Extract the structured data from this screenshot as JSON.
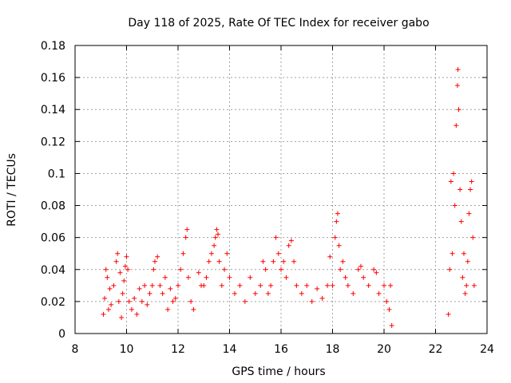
{
  "chart_data": {
    "type": "scatter",
    "title": "Day 118 of 2025, Rate Of TEC Index for receiver gabo",
    "xlabel": "GPS time / hours",
    "ylabel": "ROTI / TECUs",
    "xlim": [
      8,
      24
    ],
    "ylim": [
      0,
      0.18
    ],
    "x_ticks": [
      "8",
      "10",
      "12",
      "14",
      "16",
      "18",
      "20",
      "22",
      "24"
    ],
    "y_ticks": [
      "0",
      "0.02",
      "0.04",
      "0.06",
      "0.08",
      "0.1",
      "0.12",
      "0.14",
      "0.16",
      "0.18"
    ],
    "grid": true,
    "marker": "+",
    "marker_color": "#ff0000",
    "series": [
      {
        "points": [
          [
            9.1,
            0.012
          ],
          [
            9.15,
            0.022
          ],
          [
            9.2,
            0.04
          ],
          [
            9.25,
            0.035
          ],
          [
            9.3,
            0.015
          ],
          [
            9.35,
            0.028
          ],
          [
            9.4,
            0.018
          ],
          [
            9.5,
            0.03
          ],
          [
            9.6,
            0.045
          ],
          [
            9.65,
            0.05
          ],
          [
            9.7,
            0.02
          ],
          [
            9.75,
            0.038
          ],
          [
            9.8,
            0.01
          ],
          [
            9.85,
            0.025
          ],
          [
            9.9,
            0.033
          ],
          [
            9.95,
            0.042
          ],
          [
            10.0,
            0.048
          ],
          [
            10.05,
            0.04
          ],
          [
            10.1,
            0.02
          ],
          [
            10.2,
            0.015
          ],
          [
            10.3,
            0.022
          ],
          [
            10.4,
            0.012
          ],
          [
            10.5,
            0.028
          ],
          [
            10.6,
            0.02
          ],
          [
            10.7,
            0.03
          ],
          [
            10.8,
            0.018
          ],
          [
            10.9,
            0.025
          ],
          [
            11.0,
            0.03
          ],
          [
            11.05,
            0.04
          ],
          [
            11.1,
            0.045
          ],
          [
            11.2,
            0.048
          ],
          [
            11.3,
            0.03
          ],
          [
            11.4,
            0.025
          ],
          [
            11.5,
            0.035
          ],
          [
            11.6,
            0.015
          ],
          [
            11.7,
            0.028
          ],
          [
            11.8,
            0.02
          ],
          [
            11.9,
            0.022
          ],
          [
            12.0,
            0.03
          ],
          [
            12.1,
            0.04
          ],
          [
            12.2,
            0.05
          ],
          [
            12.3,
            0.06
          ],
          [
            12.35,
            0.065
          ],
          [
            12.4,
            0.035
          ],
          [
            12.5,
            0.02
          ],
          [
            12.6,
            0.015
          ],
          [
            12.8,
            0.038
          ],
          [
            12.9,
            0.03
          ],
          [
            13.0,
            0.03
          ],
          [
            13.1,
            0.035
          ],
          [
            13.2,
            0.045
          ],
          [
            13.3,
            0.05
          ],
          [
            13.4,
            0.055
          ],
          [
            13.45,
            0.06
          ],
          [
            13.5,
            0.065
          ],
          [
            13.55,
            0.062
          ],
          [
            13.6,
            0.045
          ],
          [
            13.7,
            0.03
          ],
          [
            13.8,
            0.04
          ],
          [
            13.9,
            0.05
          ],
          [
            14.0,
            0.035
          ],
          [
            14.2,
            0.025
          ],
          [
            14.4,
            0.03
          ],
          [
            14.6,
            0.02
          ],
          [
            14.8,
            0.035
          ],
          [
            15.0,
            0.025
          ],
          [
            15.2,
            0.03
          ],
          [
            15.3,
            0.045
          ],
          [
            15.4,
            0.04
          ],
          [
            15.5,
            0.025
          ],
          [
            15.6,
            0.03
          ],
          [
            15.7,
            0.045
          ],
          [
            15.8,
            0.06
          ],
          [
            15.9,
            0.05
          ],
          [
            16.0,
            0.04
          ],
          [
            16.1,
            0.045
          ],
          [
            16.2,
            0.035
          ],
          [
            16.3,
            0.055
          ],
          [
            16.4,
            0.058
          ],
          [
            16.5,
            0.045
          ],
          [
            16.6,
            0.03
          ],
          [
            16.8,
            0.025
          ],
          [
            17.0,
            0.03
          ],
          [
            17.2,
            0.02
          ],
          [
            17.4,
            0.028
          ],
          [
            17.6,
            0.022
          ],
          [
            17.8,
            0.03
          ],
          [
            17.9,
            0.048
          ],
          [
            18.0,
            0.03
          ],
          [
            18.1,
            0.06
          ],
          [
            18.15,
            0.07
          ],
          [
            18.2,
            0.075
          ],
          [
            18.25,
            0.055
          ],
          [
            18.3,
            0.04
          ],
          [
            18.4,
            0.045
          ],
          [
            18.5,
            0.035
          ],
          [
            18.6,
            0.03
          ],
          [
            18.8,
            0.025
          ],
          [
            19.0,
            0.04
          ],
          [
            19.1,
            0.042
          ],
          [
            19.2,
            0.035
          ],
          [
            19.4,
            0.03
          ],
          [
            19.6,
            0.04
          ],
          [
            19.7,
            0.038
          ],
          [
            19.8,
            0.025
          ],
          [
            20.0,
            0.03
          ],
          [
            20.1,
            0.02
          ],
          [
            20.2,
            0.015
          ],
          [
            20.25,
            0.03
          ],
          [
            20.3,
            0.005
          ],
          [
            22.5,
            0.012
          ],
          [
            22.55,
            0.04
          ],
          [
            22.6,
            0.095
          ],
          [
            22.65,
            0.05
          ],
          [
            22.7,
            0.1
          ],
          [
            22.75,
            0.08
          ],
          [
            22.8,
            0.13
          ],
          [
            22.85,
            0.155
          ],
          [
            22.87,
            0.165
          ],
          [
            22.9,
            0.14
          ],
          [
            22.95,
            0.09
          ],
          [
            23.0,
            0.07
          ],
          [
            23.05,
            0.035
          ],
          [
            23.1,
            0.05
          ],
          [
            23.15,
            0.025
          ],
          [
            23.2,
            0.03
          ],
          [
            23.25,
            0.045
          ],
          [
            23.3,
            0.075
          ],
          [
            23.35,
            0.09
          ],
          [
            23.4,
            0.095
          ],
          [
            23.45,
            0.06
          ],
          [
            23.5,
            0.03
          ]
        ]
      }
    ]
  }
}
